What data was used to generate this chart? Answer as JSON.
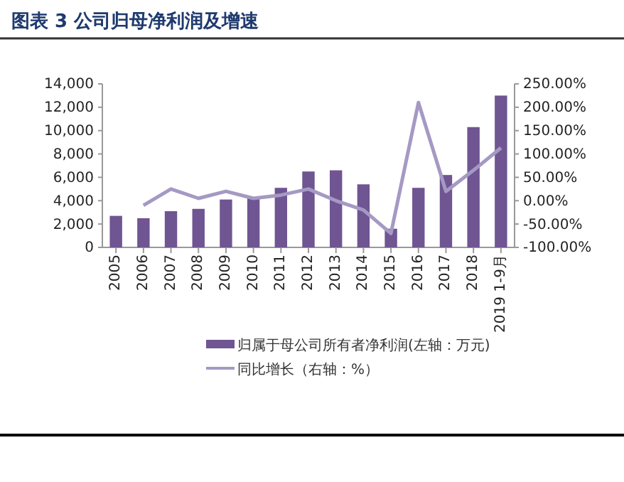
{
  "chart_data": {
    "type": "bar",
    "title": "图表 3 公司归母净利润及增速",
    "categories": [
      "2005",
      "2006",
      "2007",
      "2008",
      "2009",
      "2010",
      "2011",
      "2012",
      "2013",
      "2014",
      "2015",
      "2016",
      "2017",
      "2018",
      "2019 1-9月"
    ],
    "series": [
      {
        "name": "归属于母公司所有者净利润(左轴：万元)",
        "color": "#6f5592",
        "values": [
          2700,
          2500,
          3100,
          3300,
          4100,
          4200,
          5100,
          6500,
          6600,
          5400,
          1600,
          5100,
          6200,
          10300,
          13000
        ]
      },
      {
        "name": "同比增长（右轴：%）",
        "type": "line",
        "axis": "y2",
        "color": "#a599c4",
        "values": [
          null,
          -10,
          25,
          5,
          20,
          5,
          12,
          25,
          0,
          -20,
          -70,
          210,
          20,
          65,
          113
        ]
      }
    ],
    "ylim": [
      0,
      14000
    ],
    "yticks": [
      {
        "value": 0,
        "label": "0"
      },
      {
        "value": 2000,
        "label": "2,000"
      },
      {
        "value": 4000,
        "label": "4,000"
      },
      {
        "value": 6000,
        "label": "6,000"
      },
      {
        "value": 8000,
        "label": "8,000"
      },
      {
        "value": 10000,
        "label": "10,000"
      },
      {
        "value": 12000,
        "label": "12,000"
      },
      {
        "value": 14000,
        "label": "14,000"
      }
    ],
    "y2lim": [
      -100,
      250
    ],
    "y2ticks": [
      {
        "value": -100,
        "label": "-100.00%"
      },
      {
        "value": -50,
        "label": "-50.00%"
      },
      {
        "value": 0,
        "label": "0.00%"
      },
      {
        "value": 50,
        "label": "50.00%"
      },
      {
        "value": 100,
        "label": "100.00%"
      },
      {
        "value": 150,
        "label": "150.00%"
      },
      {
        "value": 200,
        "label": "200.00%"
      },
      {
        "value": 250,
        "label": "250.00%"
      }
    ],
    "legend": "bottom",
    "grid": false,
    "marker": "none",
    "line_style": "solid"
  }
}
